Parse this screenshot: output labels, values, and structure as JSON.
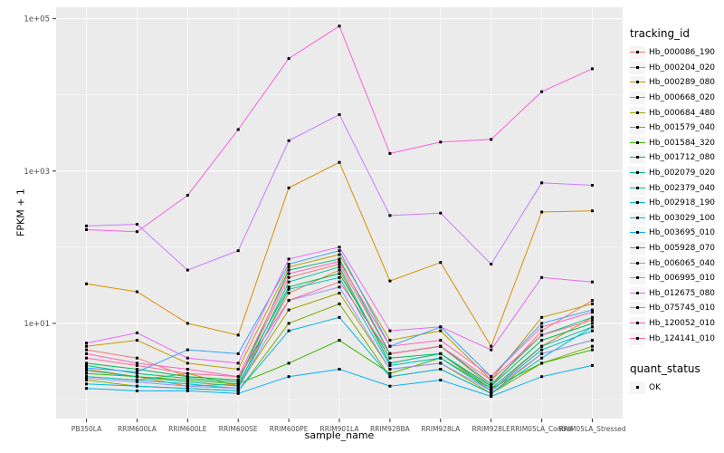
{
  "figure": {
    "ylabel": "FPKM + 1",
    "xlabel": "sample_name"
  },
  "legend": {
    "tracking_title": "tracking_id",
    "quant_title": "quant_status",
    "quant_items": [
      {
        "label": "OK",
        "marker": "black-square"
      }
    ]
  },
  "chart_data": {
    "type": "line",
    "title": "",
    "xlabel": "sample_name",
    "ylabel": "FPKM + 1",
    "y_scale": "log10",
    "y_tick_labels": [
      "1e+01",
      "1e+03",
      "1e+05"
    ],
    "y_tick_values": [
      10,
      1000,
      100000
    ],
    "y_minor_tick_values": [
      1,
      100,
      10000
    ],
    "y_domain_log10": [
      -0.25,
      5.15
    ],
    "panel_bg": "#EBEBEB",
    "grid_color": "#FFFFFF",
    "tick_label_color": "#4d4d4d",
    "point_color": "#000000",
    "point_shape": "square",
    "quant_status": "OK",
    "categories": [
      "PB350LA",
      "RRIM600LA",
      "RRIM600LE",
      "RRIM600SE",
      "RRIM600PE",
      "RRIM901LA",
      "RRIM928BA",
      "RRIM928LA",
      "RRIM928LE",
      "RRIM05LA_Control",
      "RRIM05LA_Stressed"
    ],
    "series": [
      {
        "name": "Hb_000086_190",
        "color": "#F8766D",
        "values": [
          4.5,
          3.5,
          2.0,
          1.8,
          40,
          60,
          4,
          5,
          1.5,
          8,
          20
        ]
      },
      {
        "name": "Hb_000204_020",
        "color": "#EA8331",
        "values": [
          2.5,
          2.0,
          1.5,
          1.6,
          25,
          50,
          3,
          4,
          1.3,
          5,
          12
        ]
      },
      {
        "name": "Hb_000289_080",
        "color": "#D89000",
        "values": [
          33,
          26,
          10,
          7,
          600,
          1300,
          36,
          63,
          5,
          290,
          300
        ]
      },
      {
        "name": "Hb_000668_020",
        "color": "#C09B00",
        "values": [
          5,
          6,
          3,
          2.5,
          55,
          80,
          6,
          8,
          1.8,
          12,
          18
        ]
      },
      {
        "name": "Hb_000684_480",
        "color": "#A3A500",
        "values": [
          2,
          1.8,
          2.2,
          1.5,
          15,
          25,
          2.5,
          3,
          1.2,
          4,
          6
        ]
      },
      {
        "name": "Hb_001579_040",
        "color": "#7CAE00",
        "values": [
          1.8,
          1.5,
          1.4,
          1.3,
          10,
          18,
          2,
          2.5,
          1.2,
          3,
          5
        ]
      },
      {
        "name": "Hb_001584_320",
        "color": "#39B600",
        "values": [
          2.2,
          2.0,
          1.8,
          1.6,
          3,
          6,
          2.2,
          3.5,
          1.4,
          3,
          4.5
        ]
      },
      {
        "name": "Hb_001712_080",
        "color": "#00BB4E",
        "values": [
          3,
          2.5,
          2,
          1.8,
          30,
          45,
          3.5,
          4,
          1.5,
          6,
          10
        ]
      },
      {
        "name": "Hb_002079_020",
        "color": "#00BF7D",
        "values": [
          2.8,
          2.2,
          1.9,
          1.7,
          50,
          70,
          4,
          5,
          1.6,
          7,
          12
        ]
      },
      {
        "name": "Hb_002379_040",
        "color": "#00C1A3",
        "values": [
          2.4,
          2.0,
          1.7,
          1.5,
          35,
          55,
          3,
          4,
          1.4,
          5,
          9
        ]
      },
      {
        "name": "Hb_002918_190",
        "color": "#00BFC4",
        "values": [
          2.0,
          1.8,
          1.6,
          1.4,
          28,
          40,
          2.8,
          3.5,
          1.3,
          4.5,
          8
        ]
      },
      {
        "name": "Hb_003029_100",
        "color": "#00BAE0",
        "values": [
          1.6,
          1.5,
          1.4,
          1.3,
          8,
          12,
          2,
          2.5,
          1.2,
          3.5,
          9
        ]
      },
      {
        "name": "Hb_003695_010",
        "color": "#00B0F6",
        "values": [
          1.4,
          1.3,
          1.3,
          1.2,
          2,
          2.5,
          1.5,
          1.8,
          1.1,
          2,
          2.8
        ]
      },
      {
        "name": "Hb_005928_070",
        "color": "#35A2FF",
        "values": [
          2.6,
          2.3,
          4.5,
          4,
          60,
          90,
          5,
          9,
          2,
          10,
          15
        ]
      },
      {
        "name": "Hb_006065_040",
        "color": "#9590FF",
        "values": [
          1.9,
          1.7,
          1.5,
          1.4,
          20,
          30,
          2.5,
          3,
          1.3,
          4,
          6
        ]
      },
      {
        "name": "Hb_006995_010",
        "color": "#C77CFF",
        "values": [
          190,
          200,
          50,
          90,
          2500,
          5500,
          260,
          280,
          60,
          700,
          650
        ]
      },
      {
        "name": "Hb_012675_080",
        "color": "#E76BF3",
        "values": [
          5.5,
          7.5,
          3.5,
          3,
          70,
          100,
          8,
          9,
          4.5,
          40,
          35
        ]
      },
      {
        "name": "Hb_075745_010",
        "color": "#FA62DB",
        "values": [
          170,
          160,
          480,
          3500,
          30000,
          80000,
          1700,
          2400,
          2600,
          11000,
          22000
        ]
      },
      {
        "name": "Hb_120052_010",
        "color": "#FF62BC",
        "values": [
          4,
          3,
          2.5,
          2,
          45,
          65,
          5,
          6,
          2,
          9,
          14
        ]
      },
      {
        "name": "Hb_124141_010",
        "color": "#FF6A98",
        "values": [
          3.5,
          2.8,
          2.2,
          2,
          20,
          35,
          4,
          5,
          1.8,
          7,
          11
        ]
      }
    ]
  }
}
